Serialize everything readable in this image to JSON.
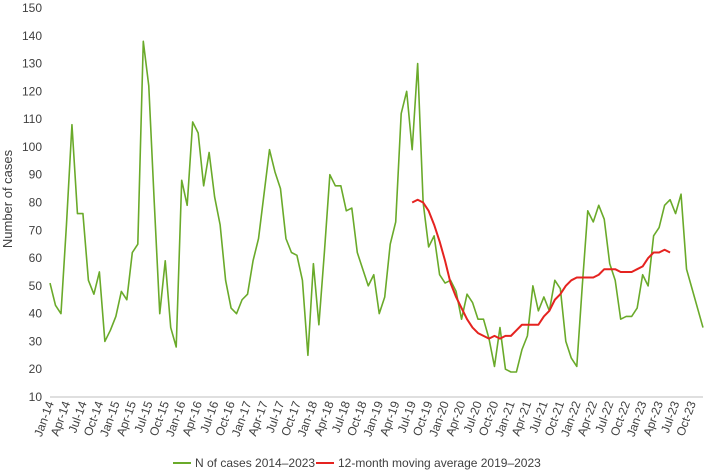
{
  "chart_data": {
    "type": "line",
    "title": "",
    "xlabel": "",
    "ylabel": "Number of cases",
    "ylim": [
      10,
      150
    ],
    "yticks": [
      10,
      20,
      30,
      40,
      50,
      60,
      70,
      80,
      90,
      100,
      110,
      120,
      130,
      140,
      150
    ],
    "grid": false,
    "legend_position": "bottom",
    "x_tick_labels": [
      "Jan-14",
      "Apr-14",
      "Jul-14",
      "Oct-14",
      "Jan-15",
      "Apr-15",
      "Jul-15",
      "Oct-15",
      "Jan-16",
      "Apr-16",
      "Jul-16",
      "Oct-16",
      "Jan-17",
      "Apr-17",
      "Jul-17",
      "Oct-17",
      "Jan-18",
      "Apr-18",
      "Jul-18",
      "Oct-18",
      "Jan-19",
      "Apr-19",
      "Jul-19",
      "Oct-19",
      "Jan-20",
      "Apr-20",
      "Jul-20",
      "Oct-20",
      "Jan-21",
      "Apr-21",
      "Jul-21",
      "Oct-21",
      "Jan-22",
      "Apr-22",
      "Jul-22",
      "Oct-22",
      "Jan-23",
      "Apr-23",
      "Jul-23",
      "Oct-23"
    ],
    "x_tick_step_months": 3,
    "x_start": "2014-01",
    "series": [
      {
        "name": "N of cases 2014–2023",
        "color": "#6aaa2a",
        "start": "2014-01",
        "values": [
          51,
          43,
          40,
          72,
          108,
          76,
          76,
          52,
          47,
          55,
          30,
          34,
          39,
          48,
          45,
          62,
          65,
          138,
          122,
          80,
          40,
          59,
          35,
          28,
          88,
          79,
          109,
          105,
          86,
          98,
          82,
          72,
          52,
          42,
          40,
          45,
          47,
          59,
          67,
          83,
          99,
          91,
          85,
          67,
          62,
          61,
          52,
          25,
          58,
          36,
          62,
          90,
          86,
          86,
          77,
          78,
          62,
          56,
          50,
          54,
          40,
          46,
          65,
          73,
          112,
          120,
          99,
          130,
          80,
          64,
          68,
          54,
          51,
          52,
          48,
          38,
          47,
          44,
          38,
          38,
          31,
          21,
          35,
          20,
          19,
          19,
          27,
          32,
          50,
          41,
          46,
          41,
          52,
          49,
          30,
          24,
          21,
          50,
          77,
          73,
          79,
          74,
          58,
          52,
          38,
          39,
          39,
          42,
          54,
          50,
          68,
          71,
          79,
          81,
          76,
          83,
          56,
          49,
          42,
          35
        ]
      },
      {
        "name": "12-month moving average 2019–2023",
        "color": "#e52320",
        "start": "2019-07",
        "values": [
          80,
          81,
          80,
          77,
          72,
          66,
          59,
          51,
          46,
          42,
          38,
          35,
          33,
          32,
          31,
          32,
          31,
          32,
          32,
          34,
          36,
          36,
          36,
          36,
          39,
          41,
          45,
          47,
          50,
          52,
          53,
          53,
          53,
          53,
          54,
          56,
          56,
          56,
          55,
          55,
          55,
          56,
          57,
          60,
          62,
          62,
          63,
          62
        ]
      }
    ]
  }
}
